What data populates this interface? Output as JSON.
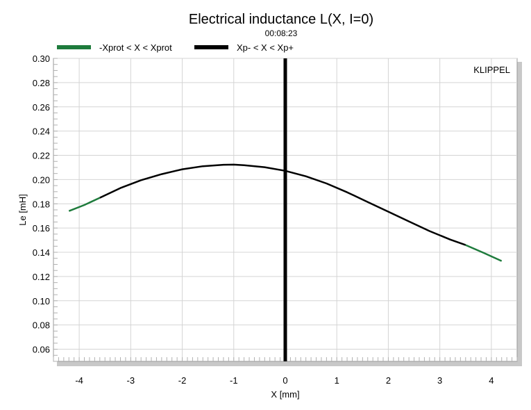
{
  "chart_data": {
    "type": "line",
    "title": "Electrical inductance L(X, I=0)",
    "subtitle": "00:08:23",
    "xlabel": "X [mm]",
    "ylabel": "Le [mH]",
    "brand": "KLIPPEL",
    "xlim": [
      -4.5,
      4.5
    ],
    "ylim": [
      0.05,
      0.3
    ],
    "xticks": [
      -4,
      -3,
      -2,
      -1,
      0,
      1,
      2,
      3,
      4
    ],
    "yticks": [
      0.06,
      0.08,
      0.1,
      0.12,
      0.14,
      0.16,
      0.18,
      0.2,
      0.22,
      0.24,
      0.26,
      0.28,
      0.3
    ],
    "grid": true,
    "legend_position": "top-left",
    "legend": [
      {
        "label": "-Xprot < X < Xprot",
        "color": "#1e7b3c"
      },
      {
        "label": "Xp- < X < Xp+",
        "color": "#000000"
      }
    ],
    "series": [
      {
        "name": "-Xprot < X < Xprot",
        "color": "#1e7b3c",
        "points": [
          [
            -4.2,
            0.174
          ],
          [
            -3.9,
            0.179
          ],
          [
            -3.6,
            0.185
          ]
        ]
      },
      {
        "name": "Xp- < X < Xp+",
        "color": "#000000",
        "points": [
          [
            -3.6,
            0.185
          ],
          [
            -3.2,
            0.193
          ],
          [
            -2.8,
            0.1995
          ],
          [
            -2.4,
            0.2045
          ],
          [
            -2.0,
            0.2085
          ],
          [
            -1.6,
            0.211
          ],
          [
            -1.2,
            0.2122
          ],
          [
            -1.0,
            0.2123
          ],
          [
            -0.8,
            0.2118
          ],
          [
            -0.4,
            0.2102
          ],
          [
            0.0,
            0.2072
          ],
          [
            0.4,
            0.2027
          ],
          [
            0.8,
            0.1968
          ],
          [
            1.2,
            0.1895
          ],
          [
            1.6,
            0.1815
          ],
          [
            2.0,
            0.1735
          ],
          [
            2.4,
            0.1655
          ],
          [
            2.8,
            0.1575
          ],
          [
            3.2,
            0.1505
          ],
          [
            3.5,
            0.146
          ]
        ]
      },
      {
        "name": "-Xprot < X < Xprot",
        "color": "#1e7b3c",
        "points": [
          [
            3.5,
            0.146
          ],
          [
            3.85,
            0.1395
          ],
          [
            4.2,
            0.1328
          ]
        ]
      }
    ],
    "vertical_marker": {
      "x": 0,
      "color": "#000000"
    }
  }
}
